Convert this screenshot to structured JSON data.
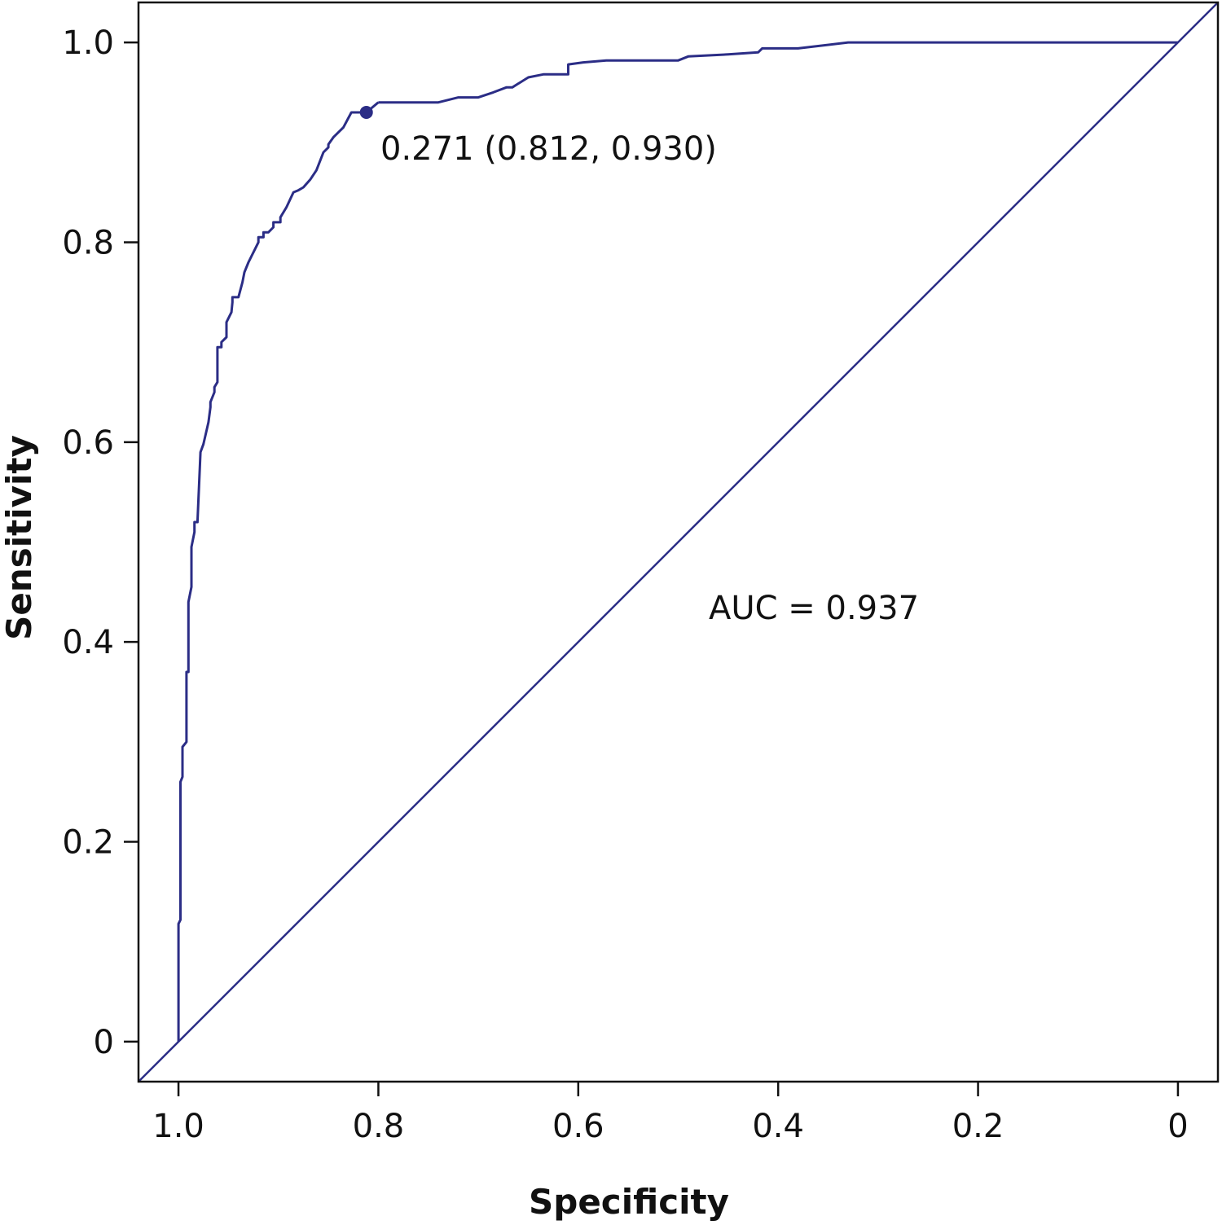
{
  "chart_data": {
    "type": "line",
    "title": "",
    "xlabel": "Specificity",
    "ylabel": "Sensitivity",
    "x_reversed": true,
    "xlim": [
      1.04,
      -0.04
    ],
    "ylim": [
      -0.04,
      1.04
    ],
    "x_ticks": [
      1.0,
      0.8,
      0.6,
      0.4,
      0.2,
      0
    ],
    "x_tick_labels": [
      "1.0",
      "0.8",
      "0.6",
      "0.4",
      "0.2",
      "0"
    ],
    "y_ticks": [
      0,
      0.2,
      0.4,
      0.6,
      0.8,
      1.0
    ],
    "y_tick_labels": [
      "0",
      "0.2",
      "0.4",
      "0.6",
      "0.8",
      "1.0"
    ],
    "grid": false,
    "line_color": "#2b2d86",
    "series": [
      {
        "x": [
          1.0,
          1.0,
          0.998,
          0.998,
          0.996,
          0.996,
          0.992,
          0.992,
          0.99,
          0.99,
          0.987,
          0.987,
          0.984,
          0.984,
          0.981,
          0.978,
          0.978,
          0.975,
          0.97,
          0.968,
          0.968,
          0.964,
          0.964,
          0.961,
          0.961,
          0.957,
          0.957,
          0.952,
          0.952,
          0.947,
          0.946,
          0.946,
          0.94,
          0.936,
          0.934,
          0.93,
          0.92,
          0.92,
          0.915,
          0.915,
          0.91,
          0.905,
          0.905,
          0.898,
          0.898,
          0.892,
          0.885,
          0.88,
          0.875,
          0.868,
          0.862,
          0.855,
          0.85,
          0.85,
          0.845,
          0.835,
          0.827,
          0.82,
          0.812,
          0.812,
          0.8
        ],
        "y": [
          0,
          0.118,
          0.122,
          0.26,
          0.265,
          0.295,
          0.3,
          0.37,
          0.37,
          0.44,
          0.455,
          0.495,
          0.51,
          0.52,
          0.52,
          0.59,
          0.59,
          0.598,
          0.62,
          0.635,
          0.64,
          0.65,
          0.655,
          0.66,
          0.695,
          0.695,
          0.7,
          0.705,
          0.72,
          0.73,
          0.74,
          0.745,
          0.745,
          0.76,
          0.77,
          0.78,
          0.8,
          0.805,
          0.805,
          0.81,
          0.81,
          0.815,
          0.82,
          0.82,
          0.825,
          0.835,
          0.85,
          0.852,
          0.855,
          0.863,
          0.872,
          0.89,
          0.895,
          0.898,
          0.905,
          0.915,
          0.93,
          0.93,
          0.93,
          0.93,
          0.94
        ]
      },
      {
        "x": [
          0.8,
          0.74,
          0.72,
          0.7,
          0.685,
          0.672,
          0.666,
          0.658,
          0.65,
          0.635,
          0.625,
          0.61,
          0.61,
          0.595,
          0.572,
          0.55,
          0.5,
          0.49,
          0.45,
          0.42,
          0.416,
          0.38,
          0.33,
          0.3,
          0.0
        ],
        "y": [
          0.94,
          0.94,
          0.945,
          0.945,
          0.95,
          0.955,
          0.955,
          0.96,
          0.965,
          0.968,
          0.968,
          0.968,
          0.978,
          0.98,
          0.982,
          0.982,
          0.982,
          0.986,
          0.988,
          0.99,
          0.994,
          0.994,
          1.0,
          1.0,
          1.0
        ]
      }
    ],
    "reference_line": {
      "x": [
        1.04,
        -0.04
      ],
      "y": [
        -0.04,
        1.04
      ]
    },
    "optimal_point": {
      "x": 0.812,
      "y": 0.93,
      "label": "0.271 (0.812, 0.930)"
    },
    "annotations": [
      "AUC = 0.937"
    ]
  }
}
